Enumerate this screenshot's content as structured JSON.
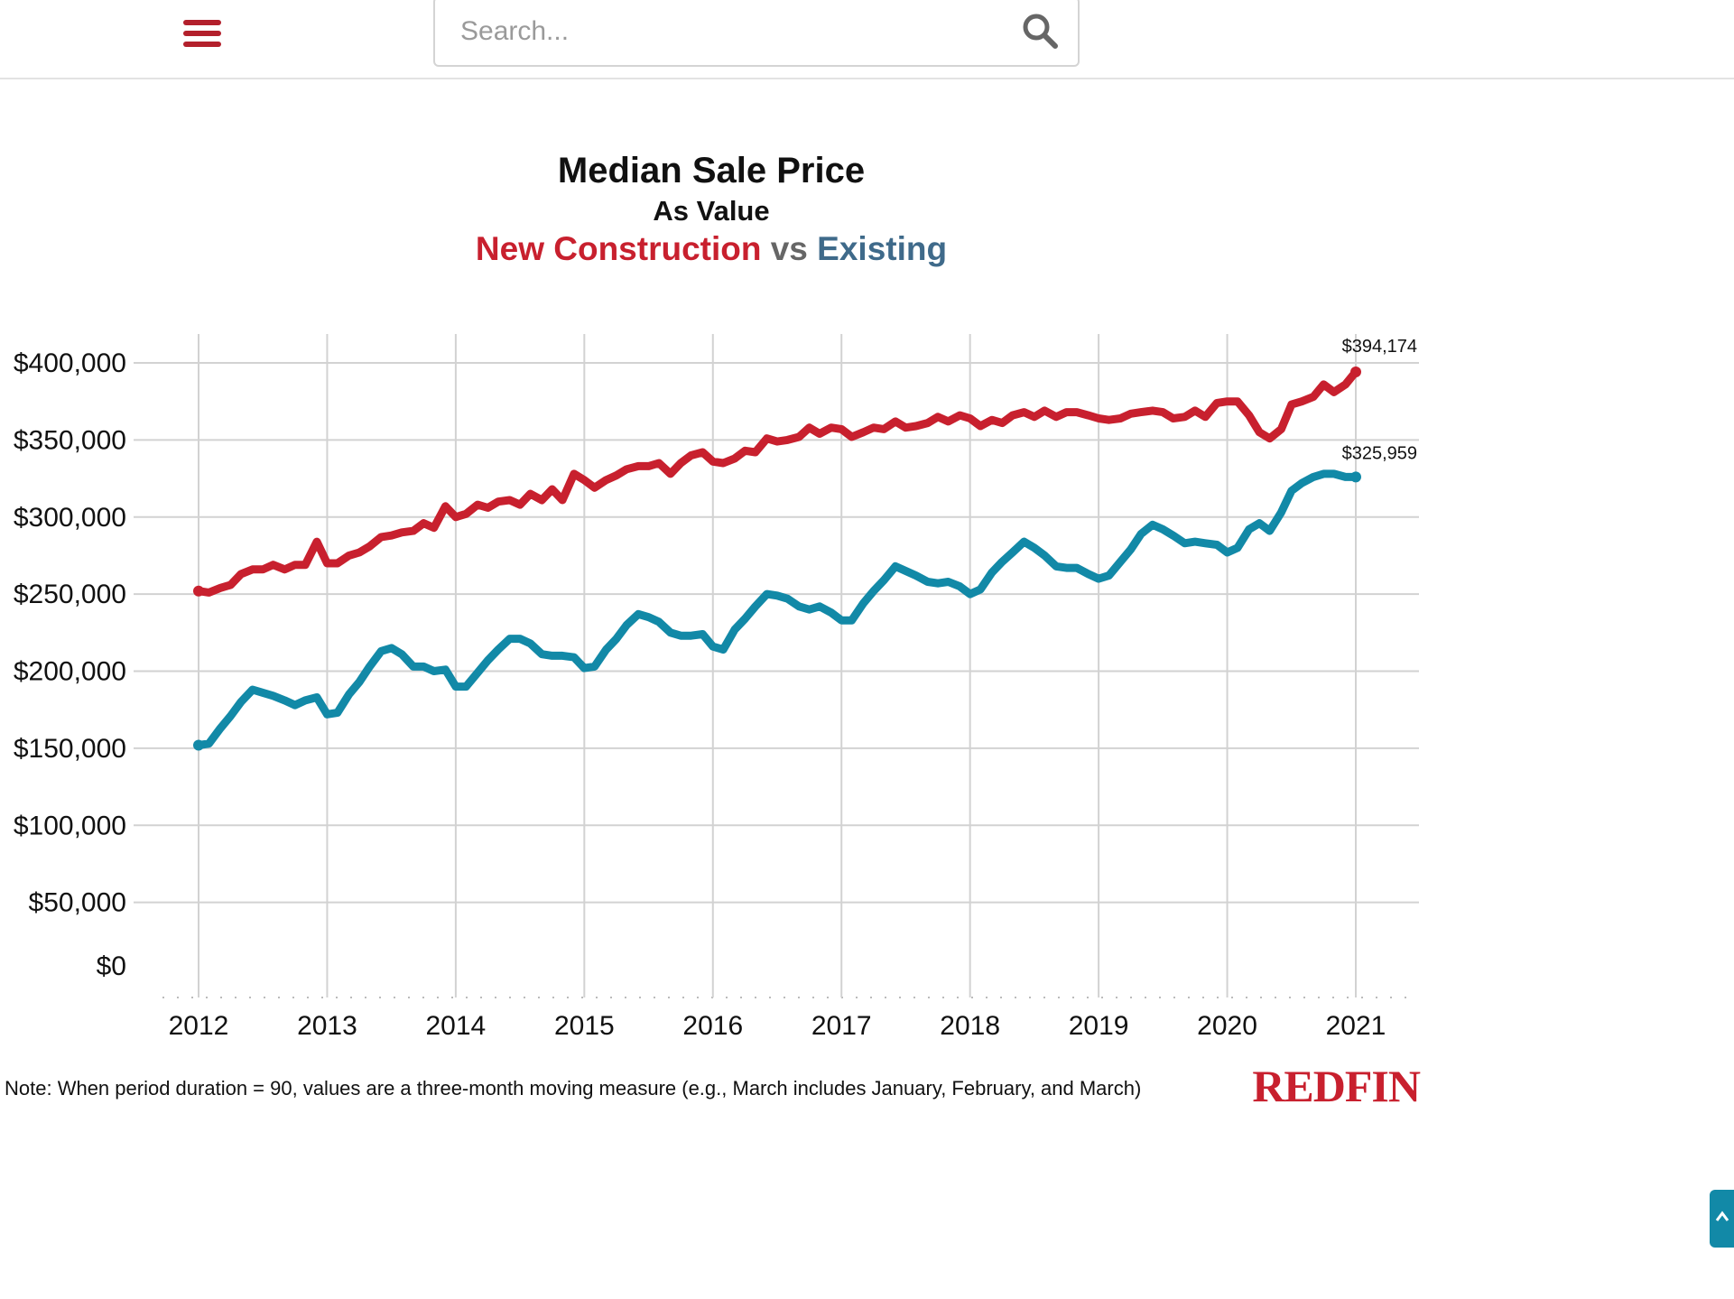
{
  "header": {
    "menu_icon": "hamburger-menu-icon",
    "search_placeholder": "Search...",
    "search_icon": "search-icon"
  },
  "chart_data": {
    "type": "line",
    "title": "Median Sale Price",
    "subtitle": "As Value",
    "legend_title_parts": [
      "New Construction",
      " vs ",
      "Existing"
    ],
    "x_tick_labels": [
      "2012",
      "2013",
      "2014",
      "2015",
      "2016",
      "2017",
      "2018",
      "2019",
      "2020",
      "2021"
    ],
    "y_tick_labels": [
      "$0",
      "$50,000",
      "$100,000",
      "$150,000",
      "$200,000",
      "$250,000",
      "$300,000",
      "$350,000",
      "$400,000"
    ],
    "y_ticks": [
      0,
      50000,
      100000,
      150000,
      200000,
      250000,
      300000,
      350000,
      400000
    ],
    "xlim": [
      2012,
      2021
    ],
    "ylim": [
      0,
      400000
    ],
    "grid": true,
    "colors": {
      "new_construction": "#c8202e",
      "existing": "#1289a7",
      "vs": "#666666",
      "existing_title": "#3f6a8a"
    },
    "end_labels": [
      "$394,174",
      "$325,959"
    ],
    "series": [
      {
        "name": "New Construction",
        "points": [
          [
            2012.0,
            252000
          ],
          [
            2012.08,
            251000
          ],
          [
            2012.17,
            254000
          ],
          [
            2012.25,
            256000
          ],
          [
            2012.33,
            263000
          ],
          [
            2012.42,
            266000
          ],
          [
            2012.5,
            266000
          ],
          [
            2012.58,
            269000
          ],
          [
            2012.67,
            266000
          ],
          [
            2012.75,
            269000
          ],
          [
            2012.83,
            269000
          ],
          [
            2012.92,
            284000
          ],
          [
            2013.0,
            270000
          ],
          [
            2013.08,
            270000
          ],
          [
            2013.17,
            275000
          ],
          [
            2013.25,
            277000
          ],
          [
            2013.33,
            281000
          ],
          [
            2013.42,
            287000
          ],
          [
            2013.5,
            288000
          ],
          [
            2013.58,
            290000
          ],
          [
            2013.67,
            291000
          ],
          [
            2013.75,
            296000
          ],
          [
            2013.83,
            293000
          ],
          [
            2013.92,
            307000
          ],
          [
            2014.0,
            300000
          ],
          [
            2014.08,
            302000
          ],
          [
            2014.17,
            308000
          ],
          [
            2014.25,
            306000
          ],
          [
            2014.33,
            310000
          ],
          [
            2014.42,
            311000
          ],
          [
            2014.5,
            308000
          ],
          [
            2014.58,
            315000
          ],
          [
            2014.67,
            311000
          ],
          [
            2014.75,
            318000
          ],
          [
            2014.83,
            311000
          ],
          [
            2014.92,
            328000
          ],
          [
            2015.0,
            324000
          ],
          [
            2015.08,
            319000
          ],
          [
            2015.17,
            324000
          ],
          [
            2015.25,
            327000
          ],
          [
            2015.33,
            331000
          ],
          [
            2015.42,
            333000
          ],
          [
            2015.5,
            333000
          ],
          [
            2015.58,
            335000
          ],
          [
            2015.67,
            328000
          ],
          [
            2015.75,
            335000
          ],
          [
            2015.83,
            340000
          ],
          [
            2015.92,
            342000
          ],
          [
            2016.0,
            336000
          ],
          [
            2016.08,
            335000
          ],
          [
            2016.17,
            338000
          ],
          [
            2016.25,
            343000
          ],
          [
            2016.33,
            342000
          ],
          [
            2016.42,
            351000
          ],
          [
            2016.5,
            349000
          ],
          [
            2016.58,
            350000
          ],
          [
            2016.67,
            352000
          ],
          [
            2016.75,
            358000
          ],
          [
            2016.83,
            354000
          ],
          [
            2016.92,
            358000
          ],
          [
            2017.0,
            357000
          ],
          [
            2017.08,
            352000
          ],
          [
            2017.17,
            355000
          ],
          [
            2017.25,
            358000
          ],
          [
            2017.33,
            357000
          ],
          [
            2017.42,
            362000
          ],
          [
            2017.5,
            358000
          ],
          [
            2017.58,
            359000
          ],
          [
            2017.67,
            361000
          ],
          [
            2017.75,
            365000
          ],
          [
            2017.83,
            362000
          ],
          [
            2017.92,
            366000
          ],
          [
            2018.0,
            364000
          ],
          [
            2018.08,
            359000
          ],
          [
            2018.17,
            363000
          ],
          [
            2018.25,
            361000
          ],
          [
            2018.33,
            366000
          ],
          [
            2018.42,
            368000
          ],
          [
            2018.5,
            365000
          ],
          [
            2018.58,
            369000
          ],
          [
            2018.67,
            365000
          ],
          [
            2018.75,
            368000
          ],
          [
            2018.83,
            368000
          ],
          [
            2018.92,
            366000
          ],
          [
            2019.0,
            364000
          ],
          [
            2019.08,
            363000
          ],
          [
            2019.17,
            364000
          ],
          [
            2019.25,
            367000
          ],
          [
            2019.33,
            368000
          ],
          [
            2019.42,
            369000
          ],
          [
            2019.5,
            368000
          ],
          [
            2019.58,
            364000
          ],
          [
            2019.67,
            365000
          ],
          [
            2019.75,
            369000
          ],
          [
            2019.83,
            365000
          ],
          [
            2019.92,
            374000
          ],
          [
            2020.0,
            375000
          ],
          [
            2020.08,
            375000
          ],
          [
            2020.17,
            366000
          ],
          [
            2020.25,
            355000
          ],
          [
            2020.33,
            351000
          ],
          [
            2020.42,
            357000
          ],
          [
            2020.5,
            373000
          ],
          [
            2020.58,
            375000
          ],
          [
            2020.67,
            378000
          ],
          [
            2020.75,
            386000
          ],
          [
            2020.83,
            381000
          ],
          [
            2020.92,
            386000
          ],
          [
            2021.0,
            394174
          ]
        ]
      },
      {
        "name": "Existing",
        "points": [
          [
            2012.0,
            152000
          ],
          [
            2012.08,
            153000
          ],
          [
            2012.17,
            163000
          ],
          [
            2012.25,
            171000
          ],
          [
            2012.33,
            180000
          ],
          [
            2012.42,
            188000
          ],
          [
            2012.5,
            186000
          ],
          [
            2012.58,
            184000
          ],
          [
            2012.67,
            181000
          ],
          [
            2012.75,
            178000
          ],
          [
            2012.83,
            181000
          ],
          [
            2012.92,
            183000
          ],
          [
            2013.0,
            172000
          ],
          [
            2013.08,
            173000
          ],
          [
            2013.17,
            185000
          ],
          [
            2013.25,
            193000
          ],
          [
            2013.33,
            203000
          ],
          [
            2013.42,
            213000
          ],
          [
            2013.5,
            215000
          ],
          [
            2013.58,
            211000
          ],
          [
            2013.67,
            203000
          ],
          [
            2013.75,
            203000
          ],
          [
            2013.83,
            200000
          ],
          [
            2013.92,
            201000
          ],
          [
            2014.0,
            190000
          ],
          [
            2014.08,
            190000
          ],
          [
            2014.17,
            199000
          ],
          [
            2014.25,
            207000
          ],
          [
            2014.33,
            214000
          ],
          [
            2014.42,
            221000
          ],
          [
            2014.5,
            221000
          ],
          [
            2014.58,
            218000
          ],
          [
            2014.67,
            211000
          ],
          [
            2014.75,
            210000
          ],
          [
            2014.83,
            210000
          ],
          [
            2014.92,
            209000
          ],
          [
            2015.0,
            202000
          ],
          [
            2015.08,
            203000
          ],
          [
            2015.17,
            214000
          ],
          [
            2015.25,
            221000
          ],
          [
            2015.33,
            230000
          ],
          [
            2015.42,
            237000
          ],
          [
            2015.5,
            235000
          ],
          [
            2015.58,
            232000
          ],
          [
            2015.67,
            225000
          ],
          [
            2015.75,
            223000
          ],
          [
            2015.83,
            223000
          ],
          [
            2015.92,
            224000
          ],
          [
            2016.0,
            216000
          ],
          [
            2016.08,
            214000
          ],
          [
            2016.17,
            227000
          ],
          [
            2016.25,
            234000
          ],
          [
            2016.33,
            242000
          ],
          [
            2016.42,
            250000
          ],
          [
            2016.5,
            249000
          ],
          [
            2016.58,
            247000
          ],
          [
            2016.67,
            242000
          ],
          [
            2016.75,
            240000
          ],
          [
            2016.83,
            242000
          ],
          [
            2016.92,
            238000
          ],
          [
            2017.0,
            233000
          ],
          [
            2017.08,
            233000
          ],
          [
            2017.17,
            244000
          ],
          [
            2017.25,
            252000
          ],
          [
            2017.33,
            259000
          ],
          [
            2017.42,
            268000
          ],
          [
            2017.5,
            265000
          ],
          [
            2017.58,
            262000
          ],
          [
            2017.67,
            258000
          ],
          [
            2017.75,
            257000
          ],
          [
            2017.83,
            258000
          ],
          [
            2017.92,
            255000
          ],
          [
            2018.0,
            250000
          ],
          [
            2018.08,
            253000
          ],
          [
            2018.17,
            264000
          ],
          [
            2018.25,
            271000
          ],
          [
            2018.33,
            277000
          ],
          [
            2018.42,
            284000
          ],
          [
            2018.5,
            280000
          ],
          [
            2018.58,
            275000
          ],
          [
            2018.67,
            268000
          ],
          [
            2018.75,
            267000
          ],
          [
            2018.83,
            267000
          ],
          [
            2018.92,
            263000
          ],
          [
            2019.0,
            260000
          ],
          [
            2019.08,
            262000
          ],
          [
            2019.17,
            271000
          ],
          [
            2019.25,
            279000
          ],
          [
            2019.33,
            289000
          ],
          [
            2019.42,
            295000
          ],
          [
            2019.5,
            292000
          ],
          [
            2019.58,
            288000
          ],
          [
            2019.67,
            283000
          ],
          [
            2019.75,
            284000
          ],
          [
            2019.83,
            283000
          ],
          [
            2019.92,
            282000
          ],
          [
            2020.0,
            277000
          ],
          [
            2020.08,
            280000
          ],
          [
            2020.17,
            292000
          ],
          [
            2020.25,
            296000
          ],
          [
            2020.33,
            291000
          ],
          [
            2020.42,
            303000
          ],
          [
            2020.5,
            317000
          ],
          [
            2020.58,
            322000
          ],
          [
            2020.67,
            326000
          ],
          [
            2020.75,
            328000
          ],
          [
            2020.83,
            328000
          ],
          [
            2020.92,
            326000
          ],
          [
            2021.0,
            325959
          ]
        ]
      }
    ],
    "note": "Note: When period duration = 90, values are a three-month moving measure (e.g., March includes January, February, and March)",
    "brand": "REDFIN"
  }
}
